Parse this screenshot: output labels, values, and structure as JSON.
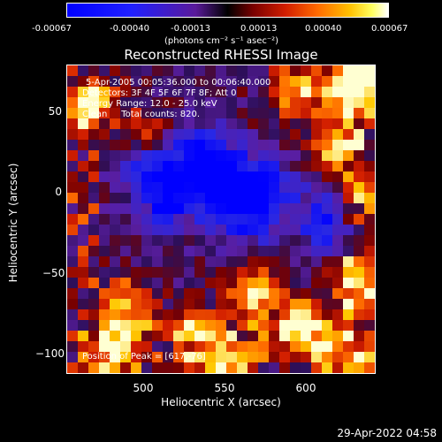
{
  "colorbar": {
    "ticks": [
      "-0.00067",
      "-0.00040",
      "-0.00013",
      "0.00013",
      "0.00040",
      "0.00067"
    ],
    "unit": "(photons cm⁻² s⁻¹ asec⁻²)"
  },
  "chart_data": {
    "type": "heatmap",
    "title": "Reconstructed RHESSI Image",
    "xlabel": "Heliocentric X (arcsec)",
    "ylabel": "Heliocentric Y (arcsec)",
    "xlim": [
      455,
      645
    ],
    "ylim": [
      -115,
      75
    ],
    "xticks": [
      "500",
      "550",
      "600"
    ],
    "yticks": [
      "50",
      "0",
      "−50",
      "−100"
    ],
    "peak": [
      617,
      -76
    ],
    "colorbar_range": [
      -0.00067,
      0.00067
    ]
  },
  "annotations": {
    "time": "5-Apr-2005 00:05:36.000 to 00:06:40.000",
    "detectors": "Detectors: 3F 4F 5F 6F 7F 8F; Att 0",
    "energy": "Energy Range: 12.0 - 25.0 keV",
    "clean": "Clean     Total counts: 820.",
    "peak": "Position of Peak = [617,-76]"
  },
  "timestamp": "29-Apr-2022 04:58"
}
